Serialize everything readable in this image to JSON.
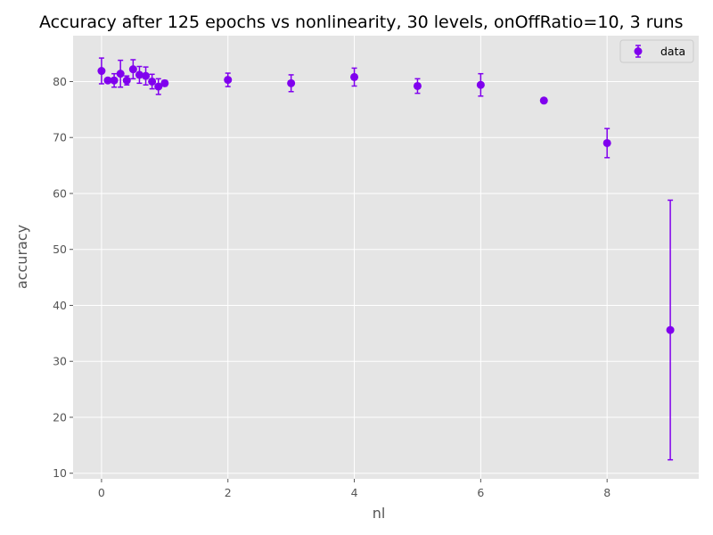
{
  "chart_data": {
    "type": "scatter",
    "title": "Accuracy after 125 epochs vs nonlinearity, 30 levels, onOffRatio=10, 3 runs",
    "xlabel": "nl",
    "ylabel": "accuracy",
    "xlim": [
      -0.45,
      9.45
    ],
    "ylim": [
      9,
      88.2
    ],
    "xticks": [
      0,
      2,
      4,
      6,
      8
    ],
    "yticks": [
      10,
      20,
      30,
      40,
      50,
      60,
      70,
      80
    ],
    "grid": true,
    "legend": {
      "placement": "top-right",
      "entries": [
        "data"
      ]
    },
    "series": [
      {
        "name": "data",
        "color": "#8000ee",
        "marker": "circle",
        "points": [
          {
            "x": 0.0,
            "y": 81.9,
            "err": 2.3
          },
          {
            "x": 0.1,
            "y": 80.2,
            "err": 0.4
          },
          {
            "x": 0.2,
            "y": 80.2,
            "err": 1.2
          },
          {
            "x": 0.3,
            "y": 81.4,
            "err": 2.4
          },
          {
            "x": 0.4,
            "y": 80.2,
            "err": 0.8
          },
          {
            "x": 0.5,
            "y": 82.2,
            "err": 1.7
          },
          {
            "x": 0.6,
            "y": 81.2,
            "err": 1.5
          },
          {
            "x": 0.7,
            "y": 81.0,
            "err": 1.6
          },
          {
            "x": 0.8,
            "y": 80.0,
            "err": 1.3
          },
          {
            "x": 0.9,
            "y": 79.1,
            "err": 1.4
          },
          {
            "x": 1.0,
            "y": 79.7,
            "err": 0.5
          },
          {
            "x": 2.0,
            "y": 80.3,
            "err": 1.2
          },
          {
            "x": 3.0,
            "y": 79.7,
            "err": 1.5
          },
          {
            "x": 4.0,
            "y": 80.8,
            "err": 1.6
          },
          {
            "x": 5.0,
            "y": 79.2,
            "err": 1.3
          },
          {
            "x": 6.0,
            "y": 79.4,
            "err": 2.0
          },
          {
            "x": 7.0,
            "y": 76.6,
            "err": 0.4
          },
          {
            "x": 8.0,
            "y": 69.0,
            "err": 2.6
          },
          {
            "x": 9.0,
            "y": 35.6,
            "err": 23.2
          }
        ]
      }
    ]
  }
}
